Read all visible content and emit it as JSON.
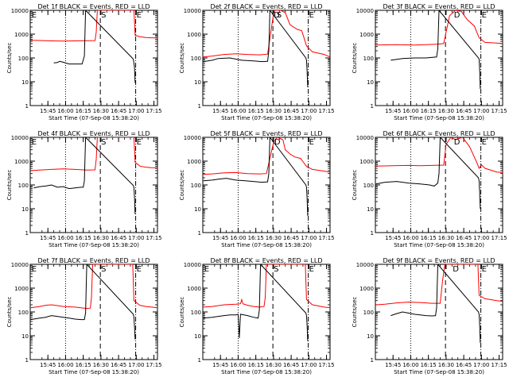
{
  "chart_data": {
    "type": "line",
    "grid": false,
    "legend": "in-title",
    "yscale": "log",
    "ylim": [
      1,
      10000
    ],
    "xlim_minutes": [
      -8,
      100
    ],
    "x_tick_labels": [
      "15:45",
      "16:00",
      "16:15",
      "16:30",
      "16:45",
      "17:00",
      "17:15"
    ],
    "y_tick_labels": [
      "1",
      "10",
      "100",
      "1000",
      "10000"
    ],
    "xlabel": "Start Time (07-Sep-08 15:38:20)",
    "ylabel": "Counts/sec",
    "colors": {
      "events": "#000000",
      "lld": "#ff0000"
    },
    "panels": [
      {
        "title": "Det 1f BLACK = Events, RED = LLD",
        "markers": [
          {
            "label": "E",
            "minute": -7.5
          },
          {
            "label": "S",
            "minute": 51.5
          },
          {
            "label": "E",
            "minute": 81.5
          }
        ],
        "red": [
          [
            -7.5,
            550
          ],
          [
            0,
            540
          ],
          [
            10,
            520
          ],
          [
            20,
            510
          ],
          [
            30,
            520
          ],
          [
            40,
            530
          ],
          [
            47,
            535
          ],
          [
            48,
            1200
          ],
          [
            49,
            10000
          ],
          [
            80,
            10000
          ],
          [
            81,
            900
          ],
          [
            85,
            780
          ],
          [
            90,
            720
          ],
          [
            95,
            700
          ],
          [
            100,
            690
          ]
        ],
        "black": [
          [
            12,
            62
          ],
          [
            15,
            64
          ],
          [
            17,
            72
          ],
          [
            20,
            66
          ],
          [
            25,
            56
          ],
          [
            30,
            56
          ],
          [
            35,
            56
          ],
          [
            36,
            56
          ],
          [
            38,
            120
          ],
          [
            39,
            10000
          ],
          [
            79.5,
            90
          ],
          [
            80,
            60
          ],
          [
            80.5,
            40
          ],
          [
            81,
            9
          ]
        ]
      },
      {
        "title": "Det 2f BLACK = Events, RED = LLD",
        "markers": [
          {
            "label": "D",
            "minute": 51.5
          },
          {
            "label": "S",
            "minute": 54
          },
          {
            "label": "E",
            "minute": 81.5
          }
        ],
        "red": [
          [
            -7.5,
            110
          ],
          [
            0,
            120
          ],
          [
            10,
            140
          ],
          [
            20,
            150
          ],
          [
            30,
            140
          ],
          [
            40,
            135
          ],
          [
            47,
            145
          ],
          [
            52,
            7000
          ],
          [
            53,
            10000
          ],
          [
            58,
            10000
          ],
          [
            62,
            8000
          ],
          [
            66,
            2500
          ],
          [
            72,
            1600
          ],
          [
            76,
            1400
          ],
          [
            80,
            320
          ],
          [
            85,
            180
          ],
          [
            95,
            140
          ],
          [
            100,
            110
          ]
        ],
        "black": [
          [
            -7.5,
            70
          ],
          [
            0,
            80
          ],
          [
            5,
            95
          ],
          [
            15,
            100
          ],
          [
            25,
            80
          ],
          [
            35,
            75
          ],
          [
            42,
            70
          ],
          [
            47,
            72
          ],
          [
            48,
            200
          ],
          [
            49,
            10000
          ],
          [
            79.5,
            100
          ],
          [
            80,
            80
          ],
          [
            80.5,
            30
          ],
          [
            81,
            6
          ]
        ]
      },
      {
        "title": "Det 3f BLACK = Events, RED = LLD",
        "markers": [
          {
            "label": "D",
            "minute": 58
          },
          {
            "label": "E",
            "minute": 81.5
          }
        ],
        "red": [
          [
            -7.5,
            350
          ],
          [
            10,
            360
          ],
          [
            25,
            350
          ],
          [
            35,
            360
          ],
          [
            45,
            380
          ],
          [
            50,
            400
          ],
          [
            55,
            6000
          ],
          [
            60,
            10000
          ],
          [
            65,
            9000
          ],
          [
            70,
            4000
          ],
          [
            76,
            2200
          ],
          [
            80,
            700
          ],
          [
            85,
            450
          ],
          [
            95,
            420
          ],
          [
            100,
            400
          ]
        ],
        "black": [
          [
            5,
            80
          ],
          [
            15,
            95
          ],
          [
            25,
            100
          ],
          [
            35,
            100
          ],
          [
            44,
            110
          ],
          [
            45,
            250
          ],
          [
            46,
            10000
          ],
          [
            79.5,
            100
          ],
          [
            80,
            90
          ],
          [
            80.5,
            30
          ],
          [
            81,
            5
          ]
        ]
      },
      {
        "title": "Det 4f BLACK = Events, RED = LLD",
        "markers": [
          {
            "label": "E",
            "minute": -7.5
          },
          {
            "label": "S",
            "minute": 51.5
          },
          {
            "label": "E",
            "minute": 81.5
          }
        ],
        "red": [
          [
            -7.5,
            400
          ],
          [
            0,
            420
          ],
          [
            10,
            450
          ],
          [
            20,
            470
          ],
          [
            30,
            450
          ],
          [
            40,
            420
          ],
          [
            47,
            430
          ],
          [
            48,
            1200
          ],
          [
            49,
            10000
          ],
          [
            80,
            10000
          ],
          [
            81,
            900
          ],
          [
            85,
            620
          ],
          [
            90,
            560
          ],
          [
            95,
            530
          ],
          [
            100,
            520
          ]
        ],
        "black": [
          [
            -5,
            75
          ],
          [
            0,
            85
          ],
          [
            5,
            90
          ],
          [
            10,
            100
          ],
          [
            15,
            80
          ],
          [
            20,
            85
          ],
          [
            25,
            70
          ],
          [
            30,
            75
          ],
          [
            35,
            80
          ],
          [
            37,
            80
          ],
          [
            38,
            150
          ],
          [
            39,
            10000
          ],
          [
            79.5,
            95
          ],
          [
            80,
            80
          ],
          [
            80.5,
            30
          ],
          [
            81,
            6
          ]
        ]
      },
      {
        "title": "Det 5f BLACK = Events, RED = LLD",
        "markers": [
          {
            "label": "D",
            "minute": 52
          },
          {
            "label": "E",
            "minute": 81.5
          }
        ],
        "red": [
          [
            -7.5,
            280
          ],
          [
            0,
            290
          ],
          [
            10,
            320
          ],
          [
            20,
            330
          ],
          [
            30,
            300
          ],
          [
            40,
            290
          ],
          [
            46,
            300
          ],
          [
            52,
            6000
          ],
          [
            55,
            10000
          ],
          [
            60,
            8000
          ],
          [
            62,
            3000
          ],
          [
            66,
            2000
          ],
          [
            70,
            1500
          ],
          [
            75,
            1300
          ],
          [
            80,
            600
          ],
          [
            85,
            450
          ],
          [
            95,
            380
          ],
          [
            100,
            350
          ]
        ],
        "black": [
          [
            -7.5,
            150
          ],
          [
            0,
            160
          ],
          [
            5,
            175
          ],
          [
            12,
            190
          ],
          [
            20,
            160
          ],
          [
            28,
            150
          ],
          [
            35,
            140
          ],
          [
            42,
            130
          ],
          [
            47,
            135
          ],
          [
            48,
            300
          ],
          [
            49,
            10000
          ],
          [
            79.5,
            100
          ],
          [
            80,
            80
          ],
          [
            80.5,
            30
          ],
          [
            81,
            5
          ]
        ]
      },
      {
        "title": "Det 6f BLACK = Events, RED = LLD",
        "markers": [
          {
            "label": "D",
            "minute": 58
          },
          {
            "label": "E",
            "minute": 81.5
          }
        ],
        "red": [
          [
            -7.5,
            620
          ],
          [
            0,
            630
          ],
          [
            10,
            650
          ],
          [
            20,
            660
          ],
          [
            30,
            640
          ],
          [
            40,
            660
          ],
          [
            50,
            680
          ],
          [
            52,
            5000
          ],
          [
            56,
            10000
          ],
          [
            60,
            8000
          ],
          [
            66,
            10000
          ],
          [
            72,
            4000
          ],
          [
            78,
            900
          ],
          [
            80,
            500
          ],
          [
            82,
            700
          ],
          [
            85,
            500
          ],
          [
            95,
            350
          ],
          [
            100,
            330
          ]
        ],
        "black": [
          [
            -7.5,
            110
          ],
          [
            0,
            130
          ],
          [
            10,
            140
          ],
          [
            20,
            120
          ],
          [
            30,
            110
          ],
          [
            38,
            100
          ],
          [
            42,
            90
          ],
          [
            45,
            120
          ],
          [
            46,
            300
          ],
          [
            47,
            10000
          ],
          [
            79.5,
            200
          ],
          [
            80,
            150
          ],
          [
            80.5,
            50
          ],
          [
            81,
            10
          ]
        ]
      },
      {
        "title": "Det 7f BLACK = Events, RED = LLD",
        "markers": [
          {
            "label": "E",
            "minute": -7.5
          },
          {
            "label": "S",
            "minute": 51.5
          },
          {
            "label": "E",
            "minute": 81.5
          }
        ],
        "red": [
          [
            -7.5,
            150
          ],
          [
            0,
            170
          ],
          [
            5,
            190
          ],
          [
            10,
            200
          ],
          [
            15,
            185
          ],
          [
            20,
            170
          ],
          [
            25,
            165
          ],
          [
            30,
            160
          ],
          [
            35,
            150
          ],
          [
            40,
            140
          ],
          [
            43,
            145
          ],
          [
            44,
            400
          ],
          [
            45,
            10000
          ],
          [
            79,
            10000
          ],
          [
            80,
            300
          ],
          [
            85,
            190
          ],
          [
            90,
            170
          ],
          [
            95,
            160
          ],
          [
            100,
            150
          ]
        ],
        "black": [
          [
            -7.5,
            48
          ],
          [
            0,
            55
          ],
          [
            5,
            60
          ],
          [
            10,
            70
          ],
          [
            15,
            65
          ],
          [
            20,
            60
          ],
          [
            25,
            55
          ],
          [
            30,
            50
          ],
          [
            35,
            48
          ],
          [
            38,
            48
          ],
          [
            39,
            90
          ],
          [
            40,
            10000
          ],
          [
            79.5,
            80
          ],
          [
            80,
            60
          ],
          [
            80.5,
            25
          ],
          [
            81,
            7
          ]
        ]
      },
      {
        "title": "Det 8f BLACK = Events, RED = LLD",
        "markers": [
          {
            "label": "E",
            "minute": -7.5
          },
          {
            "label": "S",
            "minute": 51.5
          },
          {
            "label": "E",
            "minute": 81.5
          }
        ],
        "red": [
          [
            -7.5,
            160
          ],
          [
            0,
            170
          ],
          [
            10,
            200
          ],
          [
            20,
            210
          ],
          [
            24,
            220
          ],
          [
            25,
            330
          ],
          [
            26,
            220
          ],
          [
            30,
            190
          ],
          [
            35,
            170
          ],
          [
            40,
            160
          ],
          [
            44,
            170
          ],
          [
            45,
            400
          ],
          [
            46,
            10000
          ],
          [
            79,
            10000
          ],
          [
            80,
            330
          ],
          [
            85,
            200
          ],
          [
            95,
            160
          ],
          [
            100,
            150
          ]
        ],
        "black": [
          [
            -7.5,
            55
          ],
          [
            0,
            60
          ],
          [
            5,
            65
          ],
          [
            10,
            70
          ],
          [
            15,
            75
          ],
          [
            20,
            75
          ],
          [
            22,
            80
          ],
          [
            23,
            8
          ],
          [
            24,
            80
          ],
          [
            30,
            70
          ],
          [
            35,
            60
          ],
          [
            39,
            55
          ],
          [
            40,
            120
          ],
          [
            41,
            10000
          ],
          [
            79.5,
            90
          ],
          [
            80,
            70
          ],
          [
            80.5,
            30
          ],
          [
            81,
            6
          ]
        ]
      },
      {
        "title": "Det 9f BLACK = Events, RED = LLD",
        "markers": [
          {
            "label": "D",
            "minute": 57
          },
          {
            "label": "E",
            "minute": 81.5
          }
        ],
        "red": [
          [
            -7.5,
            200
          ],
          [
            0,
            210
          ],
          [
            10,
            240
          ],
          [
            20,
            260
          ],
          [
            30,
            250
          ],
          [
            40,
            230
          ],
          [
            47,
            230
          ],
          [
            49,
            2000
          ],
          [
            51,
            10000
          ],
          [
            79,
            10000
          ],
          [
            80,
            500
          ],
          [
            85,
            360
          ],
          [
            95,
            300
          ],
          [
            100,
            280
          ]
        ],
        "black": [
          [
            5,
            70
          ],
          [
            10,
            85
          ],
          [
            15,
            100
          ],
          [
            20,
            90
          ],
          [
            25,
            80
          ],
          [
            30,
            75
          ],
          [
            35,
            70
          ],
          [
            40,
            68
          ],
          [
            43,
            70
          ],
          [
            44,
            150
          ],
          [
            45,
            10000
          ],
          [
            79.5,
            100
          ],
          [
            80,
            80
          ],
          [
            80.5,
            30
          ],
          [
            81,
            5
          ]
        ]
      }
    ]
  }
}
